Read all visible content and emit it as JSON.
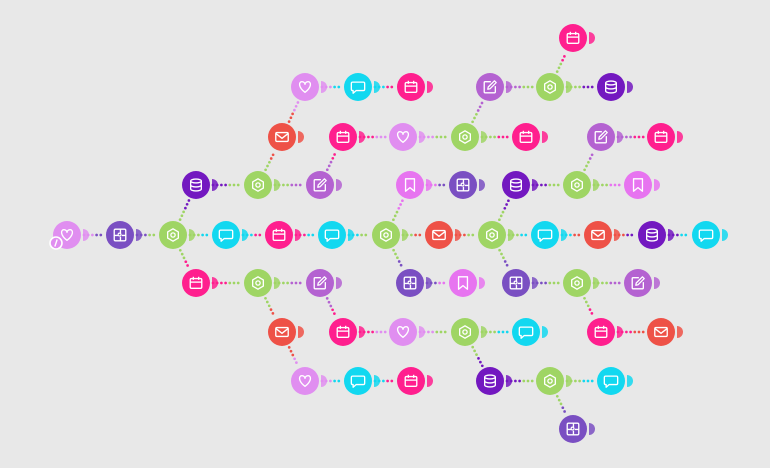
{
  "colors": {
    "background": "#e8e8e8",
    "heart": "#e08ef0",
    "chat": "#12d8f0",
    "calendar": "#ff1f8e",
    "mail": "#ee5147",
    "gear": "#9fd564",
    "edit": "#b462d1",
    "database": "#7318c0",
    "bookmark": "#e774f0",
    "puzzle": "#7a4fc2"
  },
  "workflow": {
    "start_node": "n0",
    "nodes": [
      {
        "id": "n0",
        "icon": "heart-icon",
        "kind": "heart"
      },
      {
        "id": "n1",
        "icon": "puzzle-icon",
        "kind": "puzzle"
      },
      {
        "id": "n2",
        "icon": "gear-icon",
        "kind": "gear"
      },
      {
        "id": "n3",
        "icon": "chat-icon",
        "kind": "chat"
      },
      {
        "id": "n4",
        "icon": "calendar-icon",
        "kind": "calendar"
      },
      {
        "id": "n5",
        "icon": "chat-icon",
        "kind": "chat"
      },
      {
        "id": "n6",
        "icon": "gear-icon",
        "kind": "gear"
      },
      {
        "id": "n7",
        "icon": "mail-icon",
        "kind": "mail"
      },
      {
        "id": "n8",
        "icon": "gear-icon",
        "kind": "gear"
      },
      {
        "id": "n9",
        "icon": "chat-icon",
        "kind": "chat"
      },
      {
        "id": "n10",
        "icon": "mail-icon",
        "kind": "mail"
      },
      {
        "id": "n11",
        "icon": "database-icon",
        "kind": "database"
      },
      {
        "id": "n12",
        "icon": "chat-icon",
        "kind": "chat"
      },
      {
        "id": "n13",
        "icon": "database-icon",
        "kind": "database"
      },
      {
        "id": "n14",
        "icon": "gear-icon",
        "kind": "gear"
      },
      {
        "id": "n15",
        "icon": "edit-icon",
        "kind": "edit"
      },
      {
        "id": "n16",
        "icon": "mail-icon",
        "kind": "mail"
      },
      {
        "id": "n17",
        "icon": "heart-icon",
        "kind": "heart"
      },
      {
        "id": "n18",
        "icon": "chat-icon",
        "kind": "chat"
      },
      {
        "id": "n19",
        "icon": "calendar-icon",
        "kind": "calendar"
      },
      {
        "id": "n20",
        "icon": "calendar-icon",
        "kind": "calendar"
      },
      {
        "id": "n21",
        "icon": "heart-icon",
        "kind": "heart"
      },
      {
        "id": "n22",
        "icon": "gear-icon",
        "kind": "gear"
      },
      {
        "id": "n23",
        "icon": "calendar-icon",
        "kind": "calendar"
      },
      {
        "id": "n24",
        "icon": "edit-icon",
        "kind": "edit"
      },
      {
        "id": "n25",
        "icon": "gear-icon",
        "kind": "gear"
      },
      {
        "id": "n26",
        "icon": "calendar-icon",
        "kind": "calendar"
      },
      {
        "id": "n27",
        "icon": "database-icon",
        "kind": "database"
      },
      {
        "id": "n28",
        "icon": "edit-icon",
        "kind": "edit"
      },
      {
        "id": "n29",
        "icon": "calendar-icon",
        "kind": "calendar"
      },
      {
        "id": "n30",
        "icon": "bookmark-icon",
        "kind": "bookmark"
      },
      {
        "id": "n31",
        "icon": "puzzle-icon",
        "kind": "puzzle"
      },
      {
        "id": "n32",
        "icon": "database-icon",
        "kind": "database"
      },
      {
        "id": "n33",
        "icon": "gear-icon",
        "kind": "gear"
      },
      {
        "id": "n34",
        "icon": "bookmark-icon",
        "kind": "bookmark"
      },
      {
        "id": "n35",
        "icon": "calendar-icon",
        "kind": "calendar"
      },
      {
        "id": "n36",
        "icon": "gear-icon",
        "kind": "gear"
      },
      {
        "id": "n37",
        "icon": "edit-icon",
        "kind": "edit"
      },
      {
        "id": "n38",
        "icon": "mail-icon",
        "kind": "mail"
      },
      {
        "id": "n39",
        "icon": "heart-icon",
        "kind": "heart"
      },
      {
        "id": "n40",
        "icon": "chat-icon",
        "kind": "chat"
      },
      {
        "id": "n41",
        "icon": "calendar-icon",
        "kind": "calendar"
      },
      {
        "id": "n42",
        "icon": "calendar-icon",
        "kind": "calendar"
      },
      {
        "id": "n43",
        "icon": "heart-icon",
        "kind": "heart"
      },
      {
        "id": "n44",
        "icon": "gear-icon",
        "kind": "gear"
      },
      {
        "id": "n45",
        "icon": "chat-icon",
        "kind": "chat"
      },
      {
        "id": "n46",
        "icon": "database-icon",
        "kind": "database"
      },
      {
        "id": "n47",
        "icon": "gear-icon",
        "kind": "gear"
      },
      {
        "id": "n48",
        "icon": "chat-icon",
        "kind": "chat"
      },
      {
        "id": "n49",
        "icon": "puzzle-icon",
        "kind": "puzzle"
      },
      {
        "id": "n50",
        "icon": "puzzle-icon",
        "kind": "puzzle"
      },
      {
        "id": "n51",
        "icon": "bookmark-icon",
        "kind": "bookmark"
      },
      {
        "id": "n52",
        "icon": "puzzle-icon",
        "kind": "puzzle"
      },
      {
        "id": "n53",
        "icon": "gear-icon",
        "kind": "gear"
      },
      {
        "id": "n54",
        "icon": "edit-icon",
        "kind": "edit"
      },
      {
        "id": "n55",
        "icon": "calendar-icon",
        "kind": "calendar"
      },
      {
        "id": "n56",
        "icon": "mail-icon",
        "kind": "mail"
      }
    ],
    "edges": [
      [
        "n0",
        "n1"
      ],
      [
        "n1",
        "n2"
      ],
      [
        "n2",
        "n3"
      ],
      [
        "n3",
        "n4"
      ],
      [
        "n4",
        "n5"
      ],
      [
        "n5",
        "n6"
      ],
      [
        "n6",
        "n7"
      ],
      [
        "n7",
        "n8"
      ],
      [
        "n8",
        "n9"
      ],
      [
        "n9",
        "n10"
      ],
      [
        "n10",
        "n11"
      ],
      [
        "n11",
        "n12"
      ],
      [
        "n2",
        "n13"
      ],
      [
        "n13",
        "n14"
      ],
      [
        "n14",
        "n15"
      ],
      [
        "n14",
        "n16"
      ],
      [
        "n16",
        "n17"
      ],
      [
        "n17",
        "n18"
      ],
      [
        "n18",
        "n19"
      ],
      [
        "n15",
        "n20"
      ],
      [
        "n20",
        "n21"
      ],
      [
        "n21",
        "n22"
      ],
      [
        "n22",
        "n23"
      ],
      [
        "n22",
        "n24"
      ],
      [
        "n24",
        "n25"
      ],
      [
        "n25",
        "n26"
      ],
      [
        "n25",
        "n27"
      ],
      [
        "n8",
        "n32"
      ],
      [
        "n32",
        "n33"
      ],
      [
        "n33",
        "n34"
      ],
      [
        "n33",
        "n28"
      ],
      [
        "n28",
        "n29"
      ],
      [
        "n6",
        "n30"
      ],
      [
        "n30",
        "n31"
      ],
      [
        "n2",
        "n35"
      ],
      [
        "n35",
        "n36"
      ],
      [
        "n36",
        "n37"
      ],
      [
        "n36",
        "n38"
      ],
      [
        "n38",
        "n39"
      ],
      [
        "n39",
        "n40"
      ],
      [
        "n40",
        "n41"
      ],
      [
        "n37",
        "n42"
      ],
      [
        "n42",
        "n43"
      ],
      [
        "n43",
        "n44"
      ],
      [
        "n44",
        "n45"
      ],
      [
        "n44",
        "n46"
      ],
      [
        "n46",
        "n47"
      ],
      [
        "n47",
        "n48"
      ],
      [
        "n47",
        "n49"
      ],
      [
        "n6",
        "n50"
      ],
      [
        "n50",
        "n51"
      ],
      [
        "n8",
        "n52"
      ],
      [
        "n52",
        "n53"
      ],
      [
        "n53",
        "n54"
      ],
      [
        "n53",
        "n55"
      ],
      [
        "n55",
        "n56"
      ]
    ]
  }
}
